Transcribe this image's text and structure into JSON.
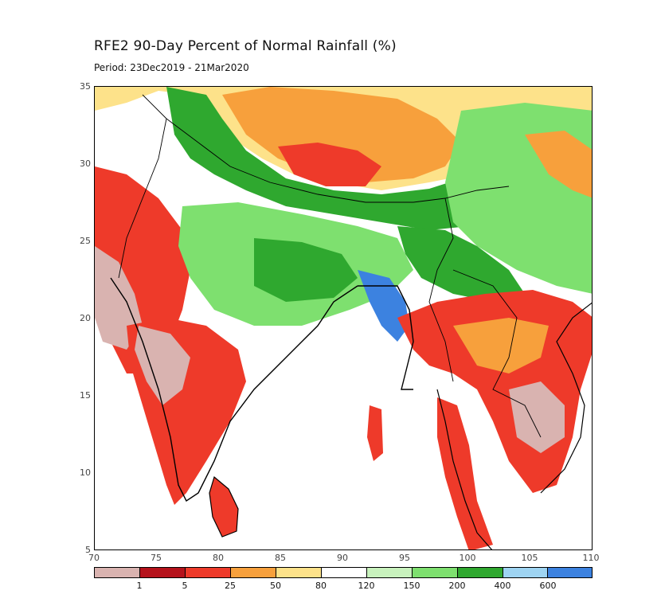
{
  "title": "RFE2 90-Day Percent of Normal Rainfall (%)",
  "subtitle": "Period: 23Dec2019 - 21Mar2020",
  "axes": {
    "lon_ticks": [
      "70",
      "75",
      "80",
      "85",
      "90",
      "95",
      "100",
      "105",
      "110"
    ],
    "lat_ticks": [
      "35",
      "30",
      "25",
      "20",
      "15",
      "10",
      "5"
    ]
  },
  "legend": {
    "colors": [
      "#d9b3b0",
      "#b5121b",
      "#ee3a2a",
      "#f7a03c",
      "#fde28a",
      "#ffffff",
      "#c8f2bd",
      "#7ee06f",
      "#2fa82f",
      "#9ed4f2",
      "#3c82e0"
    ],
    "labels": [
      "1",
      "5",
      "25",
      "50",
      "80",
      "120",
      "150",
      "200",
      "400",
      "600"
    ]
  },
  "colors": {
    "land_dry_extreme": "#d9b3b0",
    "very_dry": "#b5121b",
    "dry": "#ee3a2a",
    "below_normal": "#f7a03c",
    "slightly_below": "#fde28a",
    "normal": "#ffffff",
    "slightly_above": "#c8f2bd",
    "above": "#7ee06f",
    "well_above": "#2fa82f",
    "very_wet": "#9ed4f2",
    "extreme_wet": "#3c82e0"
  }
}
